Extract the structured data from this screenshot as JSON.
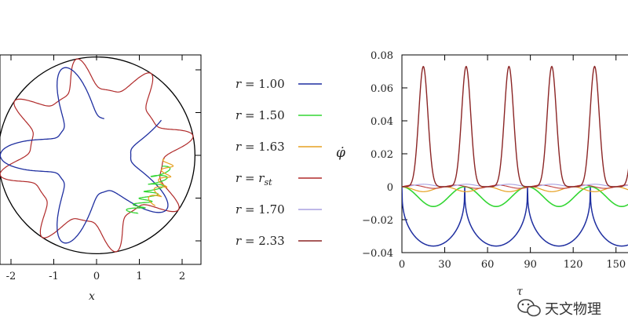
{
  "chart_data": [
    {
      "type": "line",
      "title": "",
      "xlabel": "x",
      "ylabel": "",
      "xlim": [
        -2.2,
        2.5
      ],
      "ylim": [
        -2.5,
        2.5
      ],
      "xticks": [
        "-2",
        "-1",
        "0",
        "1",
        "2"
      ],
      "boundary": "circle",
      "series": [
        {
          "name": "r = 1.00",
          "color": "#1f2fa0"
        },
        {
          "name": "r = 1.50",
          "color": "#33d633"
        },
        {
          "name": "r = 1.63",
          "color": "#e6a020"
        },
        {
          "name": "r = r_st",
          "color": "#b02a2a"
        }
      ]
    },
    {
      "type": "line",
      "title": "",
      "xlabel": "τ",
      "ylabel": "φ̇",
      "xlim": [
        0,
        165
      ],
      "ylim": [
        -0.04,
        0.08
      ],
      "xticks": [
        "0",
        "30",
        "60",
        "90",
        "120",
        "150"
      ],
      "yticks": [
        "0.08",
        "0.06",
        "0.04",
        "0.02",
        "0",
        "−0.02",
        "−0.04"
      ],
      "series": [
        {
          "name": "r = 1.00",
          "color": "#1f2fa0",
          "period": 44,
          "min": -0.036,
          "max": 0.0
        },
        {
          "name": "r = 1.50",
          "color": "#33d633",
          "period": 44,
          "min": -0.012,
          "max": 0.0
        },
        {
          "name": "r = 1.63",
          "color": "#e6a020",
          "period": 30,
          "min": -0.003,
          "max": 0.0
        },
        {
          "name": "r = r_st",
          "color": "#c04040",
          "period": 30,
          "min": -0.001,
          "max": 0.001
        },
        {
          "name": "r = 1.70",
          "color": "#a8a0e0",
          "period": 30,
          "min": 0.0,
          "max": 0.0015
        },
        {
          "name": "r = 2.33",
          "color": "#8b2525",
          "period": 30,
          "min": 0.0,
          "max": 0.073
        }
      ]
    }
  ],
  "legend": [
    {
      "label": "r = 1.00",
      "color": "#1f2fa0"
    },
    {
      "label": "r = 1.50",
      "color": "#33d633"
    },
    {
      "label": "r = 1.63",
      "color": "#e6a020"
    },
    {
      "label": "r = r",
      "sub": "st",
      "color": "#b02a2a"
    },
    {
      "label": "r = 1.70",
      "color": "#a8a0e0"
    },
    {
      "label": "r = 2.33",
      "color": "#8b2525"
    }
  ],
  "watermark": {
    "text": "天文物理",
    "icon": "wechat-icon"
  }
}
